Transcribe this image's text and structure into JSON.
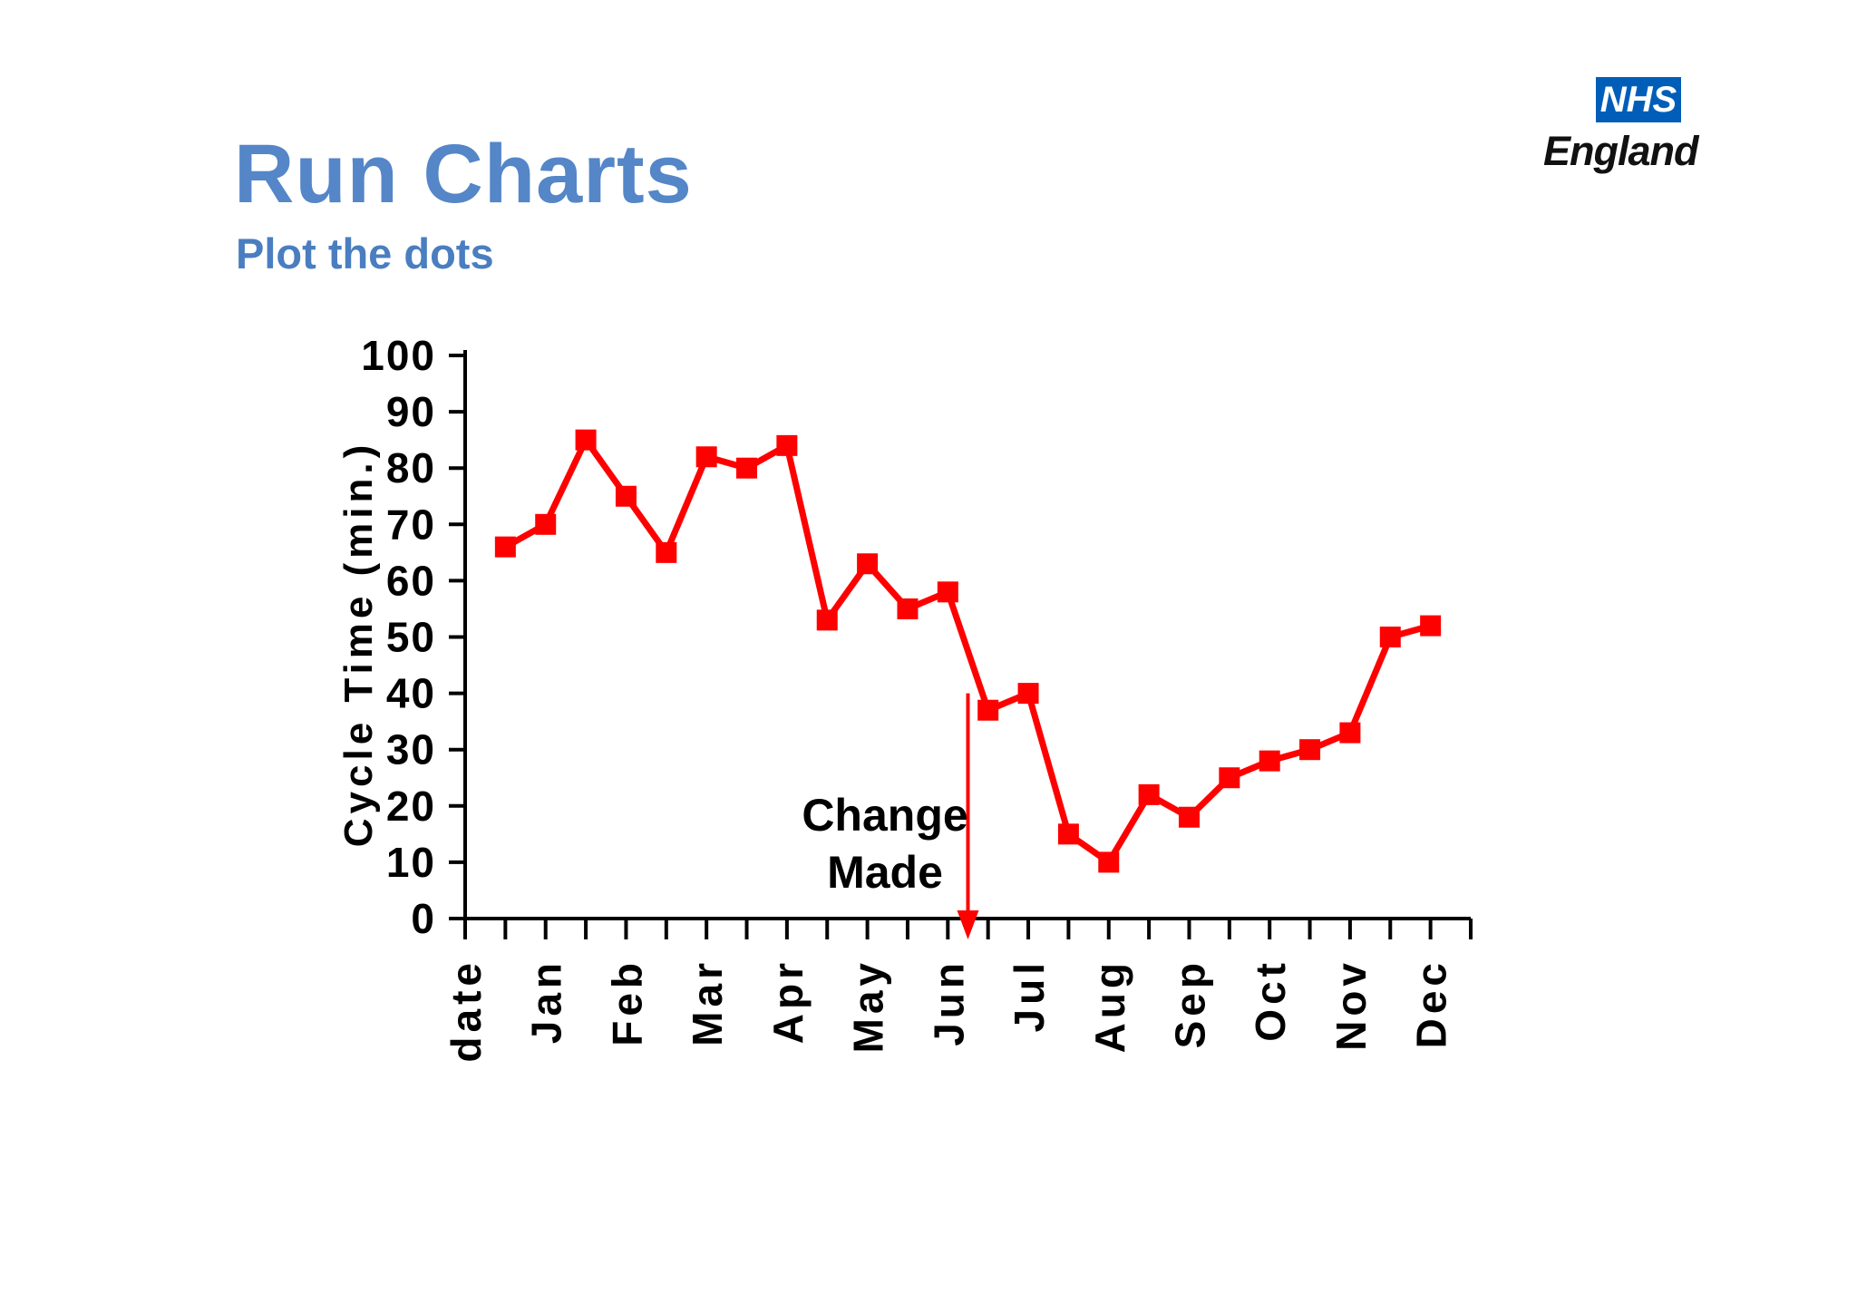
{
  "slide": {
    "title": "Run Charts",
    "subtitle": "Plot the dots"
  },
  "logo": {
    "nhs": "NHS",
    "england": "England",
    "nhs_blue": "#005EB8"
  },
  "colors": {
    "title": "#5486C8",
    "subtitle": "#4A7EC0",
    "series": "#FF0000",
    "axis": "#000000",
    "annotation_text": "#000000"
  },
  "chart_data": {
    "type": "line",
    "title": "",
    "xlabel": "",
    "ylabel": "Cycle Time (min.)",
    "ylim": [
      0,
      100
    ],
    "ytick_step": 10,
    "grid": false,
    "legend": false,
    "marker": "square",
    "x_tick_labels": [
      "date",
      "Jan",
      "Feb",
      "Mar",
      "Apr",
      "May",
      "Jun",
      "Jul",
      "Aug",
      "Sep",
      "Oct",
      "Nov",
      "Dec"
    ],
    "points_per_label": 2,
    "values": [
      66,
      70,
      85,
      75,
      65,
      82,
      80,
      84,
      53,
      63,
      55,
      58,
      37,
      40,
      15,
      10,
      22,
      18,
      25,
      28,
      30,
      33,
      50,
      52
    ],
    "annotation": {
      "line1": "Change",
      "line2": "Made",
      "arrow_between_points": [
        12,
        13
      ],
      "arrow_top_value": 40,
      "arrow_bottom_value": 0
    }
  }
}
